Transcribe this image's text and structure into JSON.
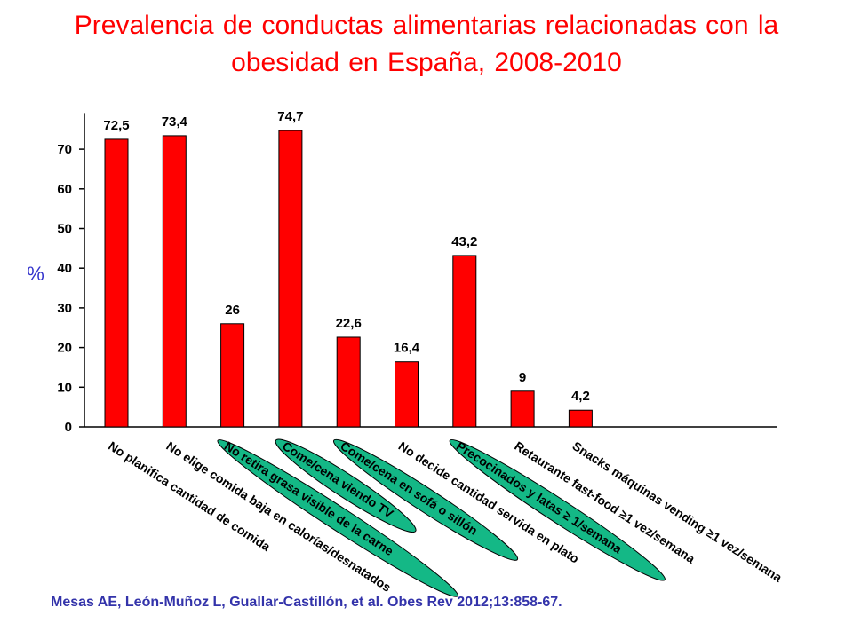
{
  "title": "Prevalencia de conductas alimentarias relacionadas con la obesidad en España, 2008-2010",
  "citation": "Mesas AE, León-Muñoz L, Guallar-Castillón, et al. Obes Rev 2012;13:858-67.",
  "colors": {
    "title": "#ff0000",
    "bar": "#ff0000",
    "highlight": "#14b886",
    "ylabel": "#3333cc",
    "citation": "#3333aa"
  },
  "chart_data": {
    "type": "bar",
    "title": "Prevalencia de conductas alimentarias relacionadas con la obesidad en España, 2008-2010",
    "xlabel": "",
    "ylabel": "%",
    "ylim": [
      0,
      80
    ],
    "yticks": [
      0,
      10,
      20,
      30,
      40,
      50,
      60,
      70
    ],
    "grid": false,
    "categories": [
      "No planifica cantidad de comida",
      "No elige comida baja en calorías/desnatados",
      "No retira grasa visible de la carne",
      "Come/cena viendo TV",
      "Come/cena en sofá o sillón",
      "No decide cantidad servida en plato",
      "Precocinados y latas ≥ 1/semana",
      "Retaurante fast-food ≥1 vez/semana",
      "Snacks máquinas vending ≥1 vez/semana"
    ],
    "values": [
      72.5,
      73.4,
      26,
      74.7,
      22.6,
      16.4,
      43.2,
      9,
      4.2
    ],
    "value_labels": [
      "72,5",
      "73,4",
      "26",
      "74,7",
      "22,6",
      "16,4",
      "43,2",
      "9",
      "4,2"
    ],
    "highlighted_categories": [
      "No retira grasa visible de la carne",
      "Come/cena viendo TV",
      "Come/cena en sofá o sillón",
      "Precocinados y latas ≥ 1/semana"
    ]
  }
}
